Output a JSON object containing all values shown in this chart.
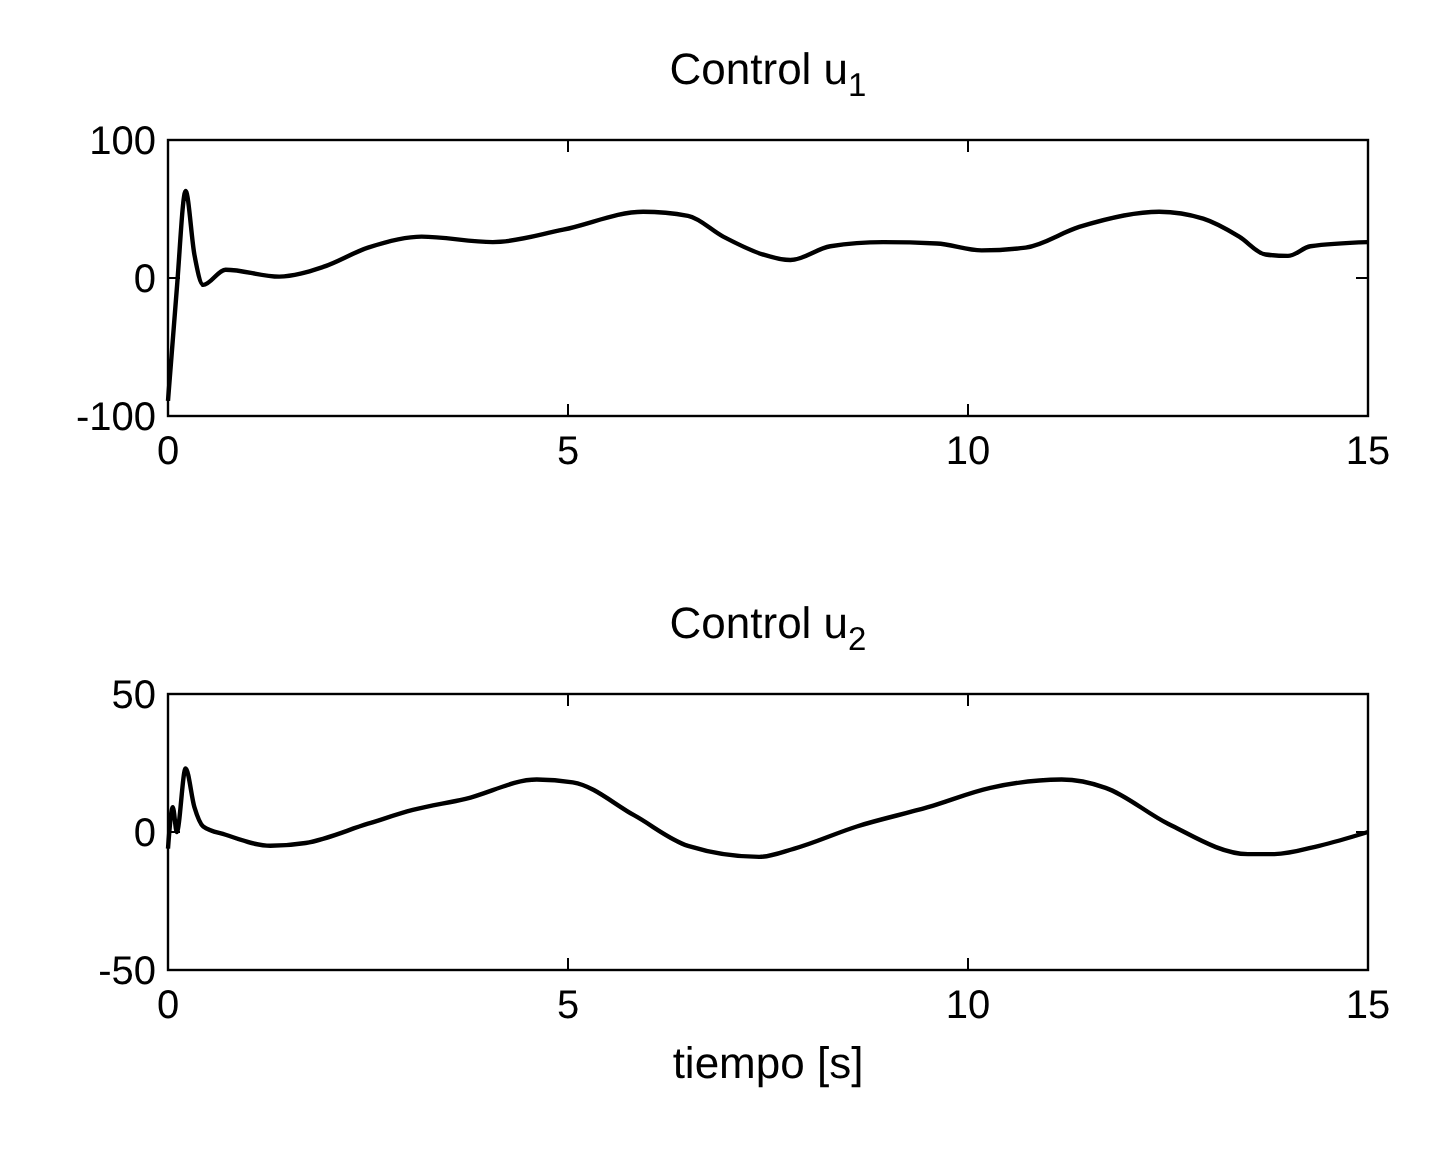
{
  "chart_data": [
    {
      "type": "line",
      "title": "Control u$_{1}$",
      "xlim": [
        0,
        15
      ],
      "xticks": [
        0,
        5,
        10,
        15
      ],
      "ylim": [
        -100,
        100
      ],
      "yticks": [
        -100,
        0,
        100
      ],
      "grid": false,
      "series": [
        {
          "color": "#000000",
          "x": [
            0,
            0.11,
            0.22,
            0.33,
            0.44,
            0.72,
            1.39,
            1.94,
            2.5,
            3.17,
            4.06,
            4.94,
            5.94,
            6.5,
            6.94,
            7.44,
            7.78,
            8.28,
            8.94,
            9.61,
            10.17,
            10.72,
            11.39,
            12.39,
            12.94,
            13.39,
            13.72,
            14.0,
            14.28,
            15
          ],
          "values": [
            -89,
            -8,
            63,
            17,
            -5,
            6,
            1,
            8,
            22,
            30,
            26,
            35,
            48,
            45,
            30,
            17,
            13,
            23,
            26,
            25,
            20,
            22,
            37,
            48,
            43,
            30,
            17,
            16,
            23,
            26
          ]
        }
      ]
    },
    {
      "type": "line",
      "title": "Control u$_{2}$",
      "xlabel": "tiempo [s]",
      "xlim": [
        0,
        15
      ],
      "xticks": [
        0,
        5,
        10,
        15
      ],
      "ylim": [
        -50,
        50
      ],
      "yticks": [
        -50,
        0,
        50
      ],
      "grid": false,
      "series": [
        {
          "color": "#000000",
          "x": [
            0,
            0.06,
            0.11,
            0.22,
            0.33,
            0.44,
            0.72,
            1.28,
            1.72,
            2.5,
            3.06,
            3.72,
            4.61,
            5.06,
            5.83,
            6.5,
            7.39,
            7.83,
            8.61,
            9.5,
            10.28,
            11.17,
            11.72,
            12.5,
            13.5,
            13.83,
            14.39,
            15
          ],
          "values": [
            -6,
            9,
            0,
            23,
            9,
            2,
            -1,
            -5,
            -4,
            3,
            8,
            12,
            19,
            18,
            6,
            -5,
            -9,
            -6,
            2,
            9,
            16,
            19,
            16,
            3,
            -8,
            -8,
            -5,
            0
          ]
        }
      ]
    }
  ]
}
